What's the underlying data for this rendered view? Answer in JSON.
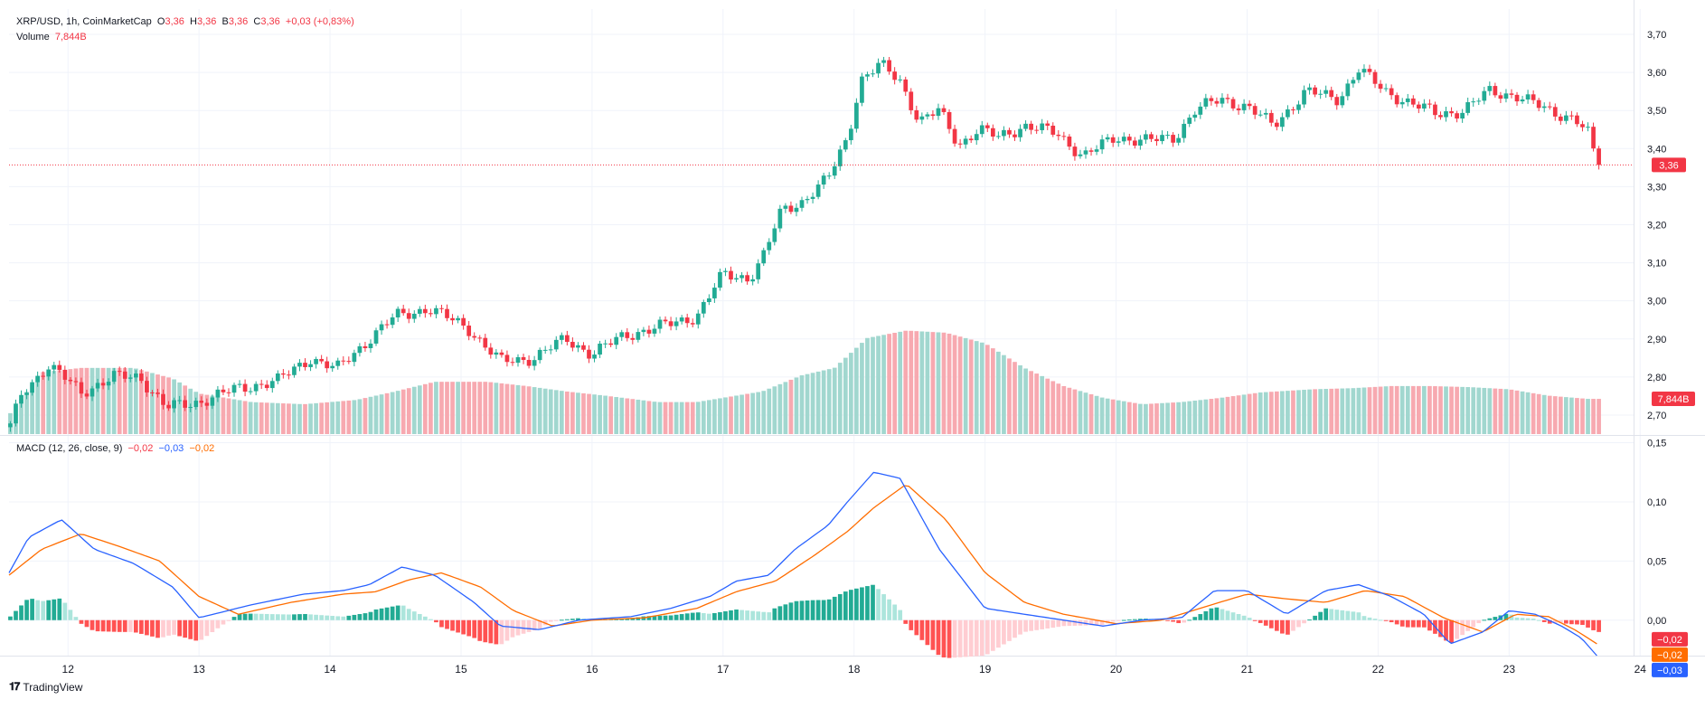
{
  "header": {
    "symbol_label": "XRP/USD, 1h, CoinMarketCap",
    "o_label": "O",
    "o_value": "3,36",
    "h_label": "H",
    "h_value": "3,36",
    "b_label": "B",
    "b_value": "3,36",
    "c_label": "C",
    "c_value": "3,36",
    "change": "+0,03 (+0,83%)",
    "volume_label": "Volume",
    "volume_value": "7,844B"
  },
  "macd_legend": {
    "label": "MACD (12, 26, close, 9)",
    "hist_value": "−0,02",
    "macd_value": "−0,03",
    "signal_value": "−0,02"
  },
  "brand": "TradingView",
  "colors": {
    "up": "#22ab94",
    "down": "#f23645",
    "vol_up": "#a1d7cf",
    "vol_down": "#f7a9b0",
    "macd_line": "#2962ff",
    "signal_line": "#ff6d00",
    "hist_up_strong": "#22ab94",
    "hist_up_weak": "#ace5dc",
    "hist_down_strong": "#ff5252",
    "hist_down_weak": "#ffcdd2"
  },
  "chart_data": [
    {
      "type": "candlestick",
      "title": "XRP/USD, 1h, CoinMarketCap",
      "xlabel": "",
      "ylabel": "",
      "x_ticks": [
        "12",
        "13",
        "14",
        "15",
        "16",
        "17",
        "18",
        "19",
        "20",
        "21",
        "22",
        "23",
        "24"
      ],
      "x_range_days": [
        11.55,
        23.95
      ],
      "y_ticks": [
        "2,70",
        "2,80",
        "2,90",
        "3,00",
        "3,10",
        "3,20",
        "3,30",
        "3,40",
        "3,50",
        "3,60",
        "3,70"
      ],
      "ylim": [
        2.65,
        3.7
      ],
      "last_price_label": "3,36",
      "last_price": 3.357,
      "grid": true,
      "anchors": [
        [
          11.55,
          2.66
        ],
        [
          11.65,
          2.76
        ],
        [
          11.85,
          2.83
        ],
        [
          12.0,
          2.79
        ],
        [
          12.1,
          2.76
        ],
        [
          12.35,
          2.8
        ],
        [
          12.55,
          2.8
        ],
        [
          12.75,
          2.72
        ],
        [
          12.95,
          2.73
        ],
        [
          13.3,
          2.77
        ],
        [
          13.6,
          2.79
        ],
        [
          13.85,
          2.85
        ],
        [
          14.05,
          2.82
        ],
        [
          14.3,
          2.9
        ],
        [
          14.5,
          2.96
        ],
        [
          14.75,
          2.98
        ],
        [
          15.05,
          2.93
        ],
        [
          15.3,
          2.84
        ],
        [
          15.55,
          2.85
        ],
        [
          15.8,
          2.9
        ],
        [
          16.0,
          2.86
        ],
        [
          16.25,
          2.91
        ],
        [
          16.5,
          2.93
        ],
        [
          16.8,
          2.96
        ],
        [
          17.0,
          3.07
        ],
        [
          17.2,
          3.06
        ],
        [
          17.3,
          3.11
        ],
        [
          17.45,
          3.24
        ],
        [
          17.6,
          3.26
        ],
        [
          17.8,
          3.32
        ],
        [
          17.95,
          3.43
        ],
        [
          18.05,
          3.58
        ],
        [
          18.2,
          3.62
        ],
        [
          18.35,
          3.58
        ],
        [
          18.5,
          3.47
        ],
        [
          18.65,
          3.5
        ],
        [
          18.8,
          3.41
        ],
        [
          18.95,
          3.45
        ],
        [
          19.1,
          3.43
        ],
        [
          19.3,
          3.46
        ],
        [
          19.55,
          3.44
        ],
        [
          19.75,
          3.38
        ],
        [
          20.0,
          3.43
        ],
        [
          20.25,
          3.42
        ],
        [
          20.45,
          3.43
        ],
        [
          20.6,
          3.5
        ],
        [
          20.8,
          3.53
        ],
        [
          21.0,
          3.51
        ],
        [
          21.2,
          3.46
        ],
        [
          21.45,
          3.55
        ],
        [
          21.7,
          3.53
        ],
        [
          21.85,
          3.61
        ],
        [
          22.05,
          3.55
        ],
        [
          22.25,
          3.52
        ],
        [
          22.45,
          3.49
        ],
        [
          22.65,
          3.5
        ],
        [
          22.85,
          3.55
        ],
        [
          23.05,
          3.54
        ],
        [
          23.3,
          3.5
        ],
        [
          23.5,
          3.48
        ],
        [
          23.6,
          3.44
        ],
        [
          23.67,
          3.36
        ]
      ],
      "volume_anchors": [
        [
          11.55,
          0.18
        ],
        [
          11.8,
          0.58
        ],
        [
          12.1,
          0.62
        ],
        [
          12.5,
          0.62
        ],
        [
          12.8,
          0.52
        ],
        [
          13.0,
          0.38
        ],
        [
          13.4,
          0.3
        ],
        [
          13.8,
          0.28
        ],
        [
          14.2,
          0.32
        ],
        [
          14.5,
          0.4
        ],
        [
          14.8,
          0.49
        ],
        [
          15.2,
          0.49
        ],
        [
          15.5,
          0.45
        ],
        [
          15.8,
          0.4
        ],
        [
          16.1,
          0.36
        ],
        [
          16.5,
          0.3
        ],
        [
          16.8,
          0.3
        ],
        [
          17.0,
          0.34
        ],
        [
          17.3,
          0.4
        ],
        [
          17.6,
          0.55
        ],
        [
          17.85,
          0.62
        ],
        [
          18.1,
          0.9
        ],
        [
          18.4,
          0.97
        ],
        [
          18.7,
          0.95
        ],
        [
          19.0,
          0.85
        ],
        [
          19.3,
          0.62
        ],
        [
          19.6,
          0.45
        ],
        [
          19.9,
          0.34
        ],
        [
          20.2,
          0.28
        ],
        [
          20.5,
          0.3
        ],
        [
          20.8,
          0.34
        ],
        [
          21.1,
          0.39
        ],
        [
          21.5,
          0.42
        ],
        [
          21.8,
          0.43
        ],
        [
          22.1,
          0.45
        ],
        [
          22.4,
          0.45
        ],
        [
          22.7,
          0.44
        ],
        [
          23.0,
          0.42
        ],
        [
          23.3,
          0.36
        ],
        [
          23.6,
          0.33
        ],
        [
          23.67,
          0.33
        ]
      ]
    },
    {
      "type": "line",
      "title": "MACD (12, 26, close, 9)",
      "y_ticks": [
        "0,00",
        "0,05",
        "0,10",
        "0,15"
      ],
      "ylim": [
        -0.03,
        0.155
      ],
      "series": [
        {
          "name": "MACD",
          "color": "#2962ff",
          "points": [
            [
              11.55,
              0.04
            ],
            [
              11.7,
              0.07
            ],
            [
              11.95,
              0.085
            ],
            [
              12.2,
              0.06
            ],
            [
              12.5,
              0.048
            ],
            [
              12.8,
              0.028
            ],
            [
              13.0,
              0.002
            ],
            [
              13.4,
              0.013
            ],
            [
              13.8,
              0.022
            ],
            [
              14.1,
              0.025
            ],
            [
              14.3,
              0.03
            ],
            [
              14.55,
              0.045
            ],
            [
              14.8,
              0.038
            ],
            [
              15.1,
              0.015
            ],
            [
              15.3,
              -0.005
            ],
            [
              15.6,
              -0.008
            ],
            [
              15.9,
              0.0
            ],
            [
              16.3,
              0.003
            ],
            [
              16.6,
              0.01
            ],
            [
              16.9,
              0.02
            ],
            [
              17.1,
              0.033
            ],
            [
              17.35,
              0.038
            ],
            [
              17.55,
              0.06
            ],
            [
              17.8,
              0.08
            ],
            [
              17.95,
              0.1
            ],
            [
              18.15,
              0.125
            ],
            [
              18.35,
              0.12
            ],
            [
              18.65,
              0.06
            ],
            [
              19.0,
              0.01
            ],
            [
              19.3,
              0.005
            ],
            [
              19.6,
              0.0
            ],
            [
              19.9,
              -0.005
            ],
            [
              20.2,
              0.0
            ],
            [
              20.5,
              0.002
            ],
            [
              20.75,
              0.025
            ],
            [
              21.0,
              0.025
            ],
            [
              21.3,
              0.005
            ],
            [
              21.6,
              0.025
            ],
            [
              21.85,
              0.03
            ],
            [
              22.1,
              0.02
            ],
            [
              22.35,
              0.005
            ],
            [
              22.55,
              -0.02
            ],
            [
              22.8,
              -0.01
            ],
            [
              23.0,
              0.008
            ],
            [
              23.2,
              0.005
            ],
            [
              23.4,
              -0.005
            ],
            [
              23.55,
              -0.015
            ],
            [
              23.67,
              -0.03
            ]
          ]
        },
        {
          "name": "Signal",
          "color": "#ff6d00",
          "points": [
            [
              11.55,
              0.038
            ],
            [
              11.8,
              0.06
            ],
            [
              12.1,
              0.073
            ],
            [
              12.4,
              0.062
            ],
            [
              12.7,
              0.05
            ],
            [
              13.0,
              0.02
            ],
            [
              13.3,
              0.005
            ],
            [
              13.7,
              0.015
            ],
            [
              14.1,
              0.022
            ],
            [
              14.35,
              0.024
            ],
            [
              14.6,
              0.034
            ],
            [
              14.85,
              0.04
            ],
            [
              15.15,
              0.028
            ],
            [
              15.4,
              0.008
            ],
            [
              15.7,
              -0.005
            ],
            [
              16.0,
              0.0
            ],
            [
              16.4,
              0.002
            ],
            [
              16.8,
              0.01
            ],
            [
              17.1,
              0.024
            ],
            [
              17.4,
              0.033
            ],
            [
              17.7,
              0.055
            ],
            [
              17.95,
              0.075
            ],
            [
              18.15,
              0.095
            ],
            [
              18.4,
              0.115
            ],
            [
              18.7,
              0.085
            ],
            [
              19.0,
              0.04
            ],
            [
              19.3,
              0.015
            ],
            [
              19.6,
              0.005
            ],
            [
              20.0,
              -0.003
            ],
            [
              20.35,
              0.0
            ],
            [
              20.7,
              0.012
            ],
            [
              21.0,
              0.022
            ],
            [
              21.3,
              0.018
            ],
            [
              21.6,
              0.015
            ],
            [
              21.9,
              0.025
            ],
            [
              22.2,
              0.02
            ],
            [
              22.5,
              0.002
            ],
            [
              22.8,
              -0.01
            ],
            [
              23.05,
              0.005
            ],
            [
              23.3,
              0.003
            ],
            [
              23.5,
              -0.008
            ],
            [
              23.67,
              -0.02
            ]
          ]
        }
      ]
    }
  ]
}
